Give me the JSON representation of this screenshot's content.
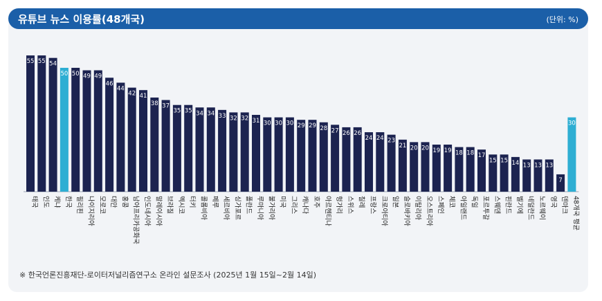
{
  "header": {
    "title": "유튜브 뉴스 이용률(48개국)",
    "unit": "(단위: %)"
  },
  "source": "※ 한국언론진흥재단-로이터저널리즘연구소 온라인 설문조사 (2025년 1월 15일~2월 14일)",
  "colors": {
    "bar": "#1c2350",
    "highlight": "#2eaed3",
    "header": "#1b5fa8",
    "panel": "#f2f4f7"
  },
  "chart_data": {
    "type": "bar",
    "categories": [
      "태국",
      "인도",
      "케냐",
      "한국",
      "필리핀",
      "나이지리아",
      "모로코",
      "대만",
      "홍콩",
      "남아프리카공화국",
      "인도네시아",
      "말레이시아",
      "브라질",
      "멕시코",
      "터키",
      "콜롬비아",
      "페루",
      "세르비아",
      "싱가포르",
      "폴란드",
      "루마니아",
      "불가리아",
      "미국",
      "그리스",
      "캐나다",
      "호주",
      "아르헨티나",
      "헝가리",
      "스위스",
      "칠레",
      "프랑스",
      "크로아티아",
      "일본",
      "슬로바키아",
      "이탈리아",
      "오스트리아",
      "스페인",
      "체코",
      "아일랜드",
      "독일",
      "포르투갈",
      "스웨덴",
      "핀란드",
      "벨기에",
      "네덜란드",
      "노르웨이",
      "영국",
      "덴마크",
      "48개국 평균"
    ],
    "values": [
      55,
      55,
      54,
      50,
      50,
      49,
      49,
      46,
      44,
      42,
      41,
      38,
      37,
      35,
      35,
      34,
      34,
      33,
      32,
      32,
      31,
      30,
      30,
      30,
      29,
      29,
      28,
      27,
      26,
      26,
      24,
      24,
      23,
      21,
      20,
      20,
      19,
      19,
      18,
      18,
      17,
      15,
      15,
      14,
      13,
      13,
      13,
      7,
      30
    ],
    "highlight": [
      "한국",
      "48개국 평균"
    ],
    "ylim": [
      0,
      60
    ]
  }
}
